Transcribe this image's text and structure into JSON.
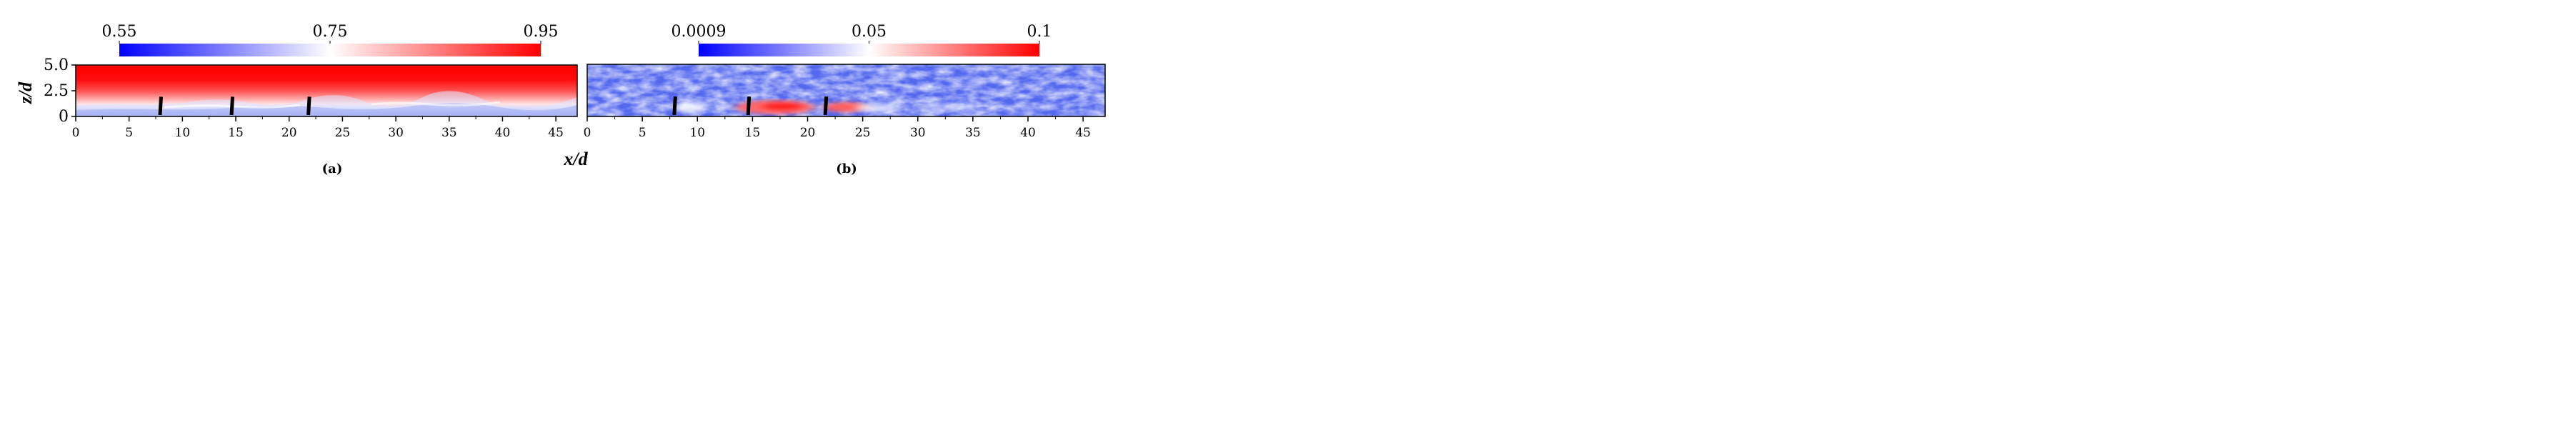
{
  "chart_data": [
    {
      "type": "heatmap",
      "panel_label": "(a)",
      "colorbar": {
        "ticks": [
          "0.55",
          "0.75",
          "0.95"
        ],
        "range": [
          0.55,
          0.95
        ],
        "colors": [
          "#0000ff",
          "#ffffff",
          "#ff0000"
        ]
      },
      "xlabel": "x/d",
      "ylabel": "z/d",
      "x_ticks": [
        "0",
        "5",
        "10",
        "15",
        "20",
        "25",
        "30",
        "35",
        "40",
        "45"
      ],
      "y_ticks": [
        "0",
        "2.5",
        "5.0"
      ],
      "xlim": [
        0,
        47
      ],
      "ylim": [
        0,
        5
      ],
      "turbine_x": [
        7.9,
        14.6,
        21.8
      ],
      "turbine_height": 1.5
    },
    {
      "type": "heatmap",
      "panel_label": "(b)",
      "colorbar": {
        "ticks": [
          "0.0009",
          "0.05",
          "0.1"
        ],
        "range": [
          0.0009,
          0.1
        ],
        "colors": [
          "#0000ff",
          "#ffffff",
          "#ff0000"
        ]
      },
      "xlabel": "",
      "ylabel": "",
      "x_ticks": [
        "0",
        "5",
        "10",
        "15",
        "20",
        "25",
        "30",
        "35",
        "40",
        "45"
      ],
      "xlim": [
        0,
        47
      ],
      "ylim": [
        0,
        5
      ],
      "turbine_x": [
        7.9,
        14.6,
        21.6
      ],
      "turbine_height": 1.5
    }
  ]
}
